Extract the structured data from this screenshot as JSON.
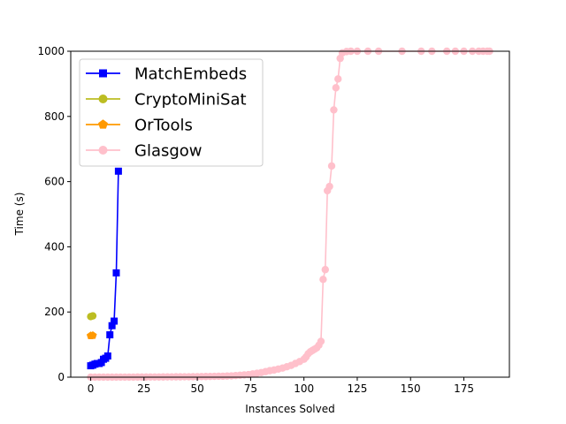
{
  "chart_data": {
    "type": "line",
    "title": "",
    "xlabel": "Instances Solved",
    "ylabel": "Time (s)",
    "xlim": [
      -9.35,
      196.35
    ],
    "ylim": [
      0,
      1000
    ],
    "xticks": [
      0,
      25,
      50,
      75,
      100,
      125,
      150,
      175
    ],
    "yticks": [
      0,
      200,
      400,
      600,
      800,
      1000
    ],
    "grid": false,
    "legend_position": "top-left",
    "series": [
      {
        "name": "MatchEmbeds",
        "color": "#0000ff",
        "marker": "square",
        "points": [
          [
            0,
            35
          ],
          [
            1,
            37
          ],
          [
            2,
            40
          ],
          [
            3,
            42
          ],
          [
            4,
            42
          ],
          [
            5,
            45
          ],
          [
            6,
            55
          ],
          [
            7,
            58
          ],
          [
            8,
            65
          ],
          [
            9,
            130
          ],
          [
            10,
            158
          ],
          [
            11,
            172
          ],
          [
            12,
            320
          ],
          [
            13,
            632
          ]
        ]
      },
      {
        "name": "CryptoMiniSat",
        "color": "#bcbd22",
        "marker": "circle",
        "points": [
          [
            0,
            186
          ],
          [
            1,
            188
          ]
        ]
      },
      {
        "name": "OrTools",
        "color": "#ff9900",
        "marker": "pentagon",
        "points": [
          [
            0,
            127
          ],
          [
            1,
            128
          ]
        ]
      },
      {
        "name": "Glasgow",
        "color": "#ffc0cb",
        "marker": "circle",
        "points": [
          [
            0,
            0.1
          ],
          [
            2,
            0.1
          ],
          [
            4,
            0.1
          ],
          [
            6,
            0.1
          ],
          [
            8,
            0.1
          ],
          [
            10,
            0.2
          ],
          [
            12,
            0.2
          ],
          [
            14,
            0.2
          ],
          [
            16,
            0.3
          ],
          [
            18,
            0.3
          ],
          [
            20,
            0.3
          ],
          [
            22,
            0.4
          ],
          [
            24,
            0.4
          ],
          [
            26,
            0.5
          ],
          [
            28,
            0.5
          ],
          [
            30,
            0.6
          ],
          [
            32,
            0.6
          ],
          [
            34,
            0.7
          ],
          [
            36,
            0.8
          ],
          [
            38,
            0.9
          ],
          [
            40,
            1
          ],
          [
            42,
            1
          ],
          [
            44,
            1.2
          ],
          [
            46,
            1.3
          ],
          [
            48,
            1.4
          ],
          [
            50,
            1.6
          ],
          [
            52,
            1.8
          ],
          [
            54,
            2
          ],
          [
            56,
            2.2
          ],
          [
            58,
            2.5
          ],
          [
            60,
            2.8
          ],
          [
            62,
            3
          ],
          [
            64,
            3.5
          ],
          [
            66,
            4
          ],
          [
            68,
            5
          ],
          [
            70,
            6
          ],
          [
            72,
            7
          ],
          [
            74,
            8
          ],
          [
            76,
            10
          ],
          [
            78,
            12
          ],
          [
            80,
            14
          ],
          [
            82,
            17
          ],
          [
            84,
            20
          ],
          [
            86,
            22
          ],
          [
            88,
            25
          ],
          [
            90,
            28
          ],
          [
            92,
            32
          ],
          [
            94,
            36
          ],
          [
            96,
            42
          ],
          [
            98,
            48
          ],
          [
            100,
            55
          ],
          [
            101,
            62
          ],
          [
            102,
            72
          ],
          [
            103,
            78
          ],
          [
            104,
            82
          ],
          [
            105,
            86
          ],
          [
            106,
            90
          ],
          [
            107,
            98
          ],
          [
            108,
            110
          ],
          [
            109,
            300
          ],
          [
            110,
            330
          ],
          [
            111,
            572
          ],
          [
            112,
            585
          ],
          [
            113,
            648
          ],
          [
            114,
            820
          ],
          [
            115,
            888
          ],
          [
            116,
            915
          ],
          [
            117,
            978
          ],
          [
            118,
            995
          ],
          [
            120,
            999
          ],
          [
            122,
            1000
          ],
          [
            125,
            1000
          ],
          [
            130,
            1000
          ],
          [
            135,
            1000
          ],
          [
            146,
            1000
          ],
          [
            155,
            1000
          ],
          [
            160,
            1000
          ],
          [
            167,
            1000
          ],
          [
            171,
            1000
          ],
          [
            175,
            1000
          ],
          [
            179,
            1000
          ],
          [
            182,
            1000
          ],
          [
            184,
            1000
          ],
          [
            186,
            1000
          ],
          [
            187,
            1000
          ]
        ]
      }
    ]
  }
}
